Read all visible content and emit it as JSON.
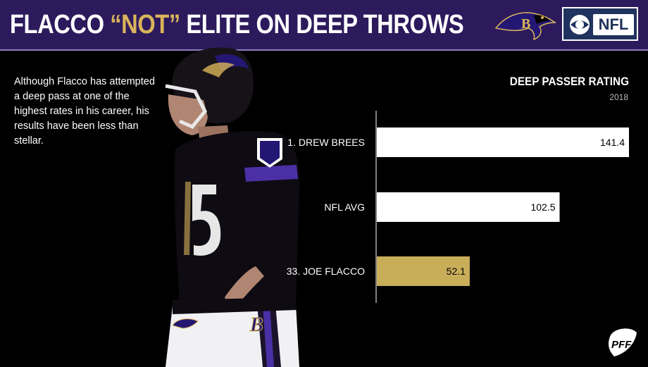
{
  "header": {
    "title_part1": "FLACCO ",
    "title_part2": "“NOT”",
    "title_part3": " ELITE ON DEEP THROWS",
    "nfl_label": "NFL"
  },
  "description": "Although Flacco has attempted a deep pass at one of the highest rates in his career, his results have been less than stellar.",
  "colors": {
    "header_bg": "#2c1a5c",
    "highlight": "#c9ae5a",
    "bar_default": "#ffffff"
  },
  "icons": [
    "ravens-logo-icon",
    "cbs-eye-icon",
    "pff-logo-icon"
  ],
  "chart_data": {
    "type": "bar",
    "orientation": "horizontal",
    "title": "DEEP PASSER RATING",
    "subtitle": "2018",
    "categories": [
      "1. DREW BREES",
      "NFL AVG",
      "33. JOE FLACCO"
    ],
    "values": [
      141.4,
      102.5,
      52.1
    ],
    "value_labels": [
      "141.4",
      "102.5",
      "52.1"
    ],
    "highlight_index": 2,
    "xlim": [
      0,
      141.4
    ],
    "grid": false,
    "legend": "none"
  }
}
